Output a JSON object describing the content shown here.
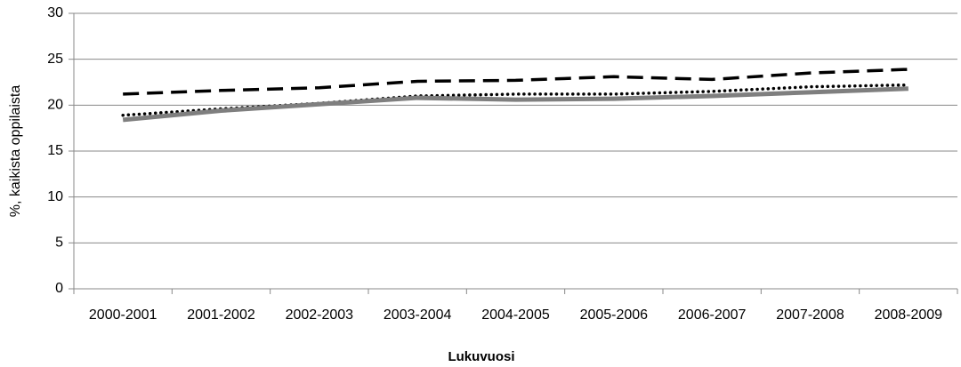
{
  "chart_data": {
    "type": "line",
    "y_label": "%, kaikista oppilaista",
    "x_label": "Lukuvuosi",
    "categories": [
      "2000-2001",
      "2001-2002",
      "2002-2003",
      "2003-2004",
      "2004-2005",
      "2005-2006",
      "2006-2007",
      "2007-2008",
      "2008-2009"
    ],
    "series": [
      {
        "color": "#000000",
        "style": "dashed",
        "values": [
          21.2,
          21.6,
          21.9,
          22.6,
          22.7,
          23.1,
          22.8,
          23.5,
          23.9
        ]
      },
      {
        "color": "#000000",
        "style": "dotted",
        "values": [
          18.9,
          19.6,
          20.2,
          21.0,
          21.2,
          21.2,
          21.5,
          22.0,
          22.2
        ]
      },
      {
        "color": "#7f7f7f",
        "style": "solid",
        "values": [
          18.4,
          19.4,
          20.1,
          20.8,
          20.6,
          20.7,
          21.0,
          21.4,
          21.8
        ]
      }
    ],
    "ylim": [
      0,
      30
    ],
    "yticks": [
      0,
      5,
      10,
      15,
      20,
      25,
      30
    ],
    "grid": true
  }
}
